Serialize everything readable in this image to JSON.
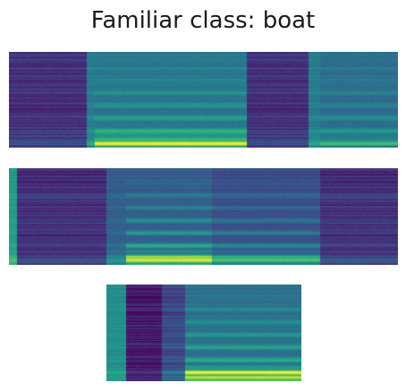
{
  "title": "Familiar class: boat",
  "colormap": "viridis",
  "colors": {
    "background": "#ffffff",
    "title_text": "#1a1a1a",
    "viridis_low": "#440154",
    "viridis_mid": "#21918c",
    "viridis_high": "#fde725"
  },
  "spectrograms": [
    {
      "name": "spectrogram-1",
      "segments": [
        {
          "from": 0.0,
          "to": 0.2,
          "floor": 0.14,
          "harmonics": 0.05,
          "banded": true,
          "low_glow": 0.1
        },
        {
          "from": 0.2,
          "to": 0.22,
          "floor": 0.42,
          "harmonics": 0.12,
          "banded": false,
          "low_glow": 0.15
        },
        {
          "from": 0.22,
          "to": 0.61,
          "floor": 0.4,
          "harmonics": 0.28,
          "banded": false,
          "low_glow": 0.55
        },
        {
          "from": 0.61,
          "to": 0.77,
          "floor": 0.14,
          "harmonics": 0.05,
          "banded": true,
          "low_glow": 0.1
        },
        {
          "from": 0.77,
          "to": 0.8,
          "floor": 0.42,
          "harmonics": 0.1,
          "banded": false,
          "low_glow": 0.15
        },
        {
          "from": 0.8,
          "to": 1.0,
          "floor": 0.36,
          "harmonics": 0.22,
          "banded": false,
          "low_glow": 0.2
        }
      ]
    },
    {
      "name": "spectrogram-2",
      "segments": [
        {
          "from": 0.0,
          "to": 0.02,
          "floor": 0.55,
          "harmonics": 0.08,
          "banded": false,
          "low_glow": 0.2
        },
        {
          "from": 0.02,
          "to": 0.25,
          "floor": 0.14,
          "harmonics": 0.05,
          "banded": true,
          "low_glow": 0.12
        },
        {
          "from": 0.25,
          "to": 0.3,
          "floor": 0.3,
          "harmonics": 0.1,
          "banded": false,
          "low_glow": 0.3
        },
        {
          "from": 0.3,
          "to": 0.52,
          "floor": 0.3,
          "harmonics": 0.4,
          "banded": false,
          "low_glow": 0.7
        },
        {
          "from": 0.52,
          "to": 0.8,
          "floor": 0.24,
          "harmonics": 0.3,
          "banded": false,
          "low_glow": 0.5
        },
        {
          "from": 0.8,
          "to": 1.0,
          "floor": 0.14,
          "harmonics": 0.08,
          "banded": true,
          "low_glow": 0.15
        }
      ]
    },
    {
      "name": "spectrogram-3",
      "segments": [
        {
          "from": 0.0,
          "to": 0.1,
          "floor": 0.5,
          "harmonics": 0.06,
          "banded": false,
          "low_glow": 0.1
        },
        {
          "from": 0.1,
          "to": 0.28,
          "floor": 0.08,
          "harmonics": 0.03,
          "banded": true,
          "low_glow": 0.05
        },
        {
          "from": 0.28,
          "to": 0.4,
          "floor": 0.22,
          "harmonics": 0.12,
          "banded": true,
          "low_glow": 0.2
        },
        {
          "from": 0.4,
          "to": 1.0,
          "floor": 0.38,
          "harmonics": 0.34,
          "banded": false,
          "low_glow": 0.75
        }
      ]
    }
  ]
}
